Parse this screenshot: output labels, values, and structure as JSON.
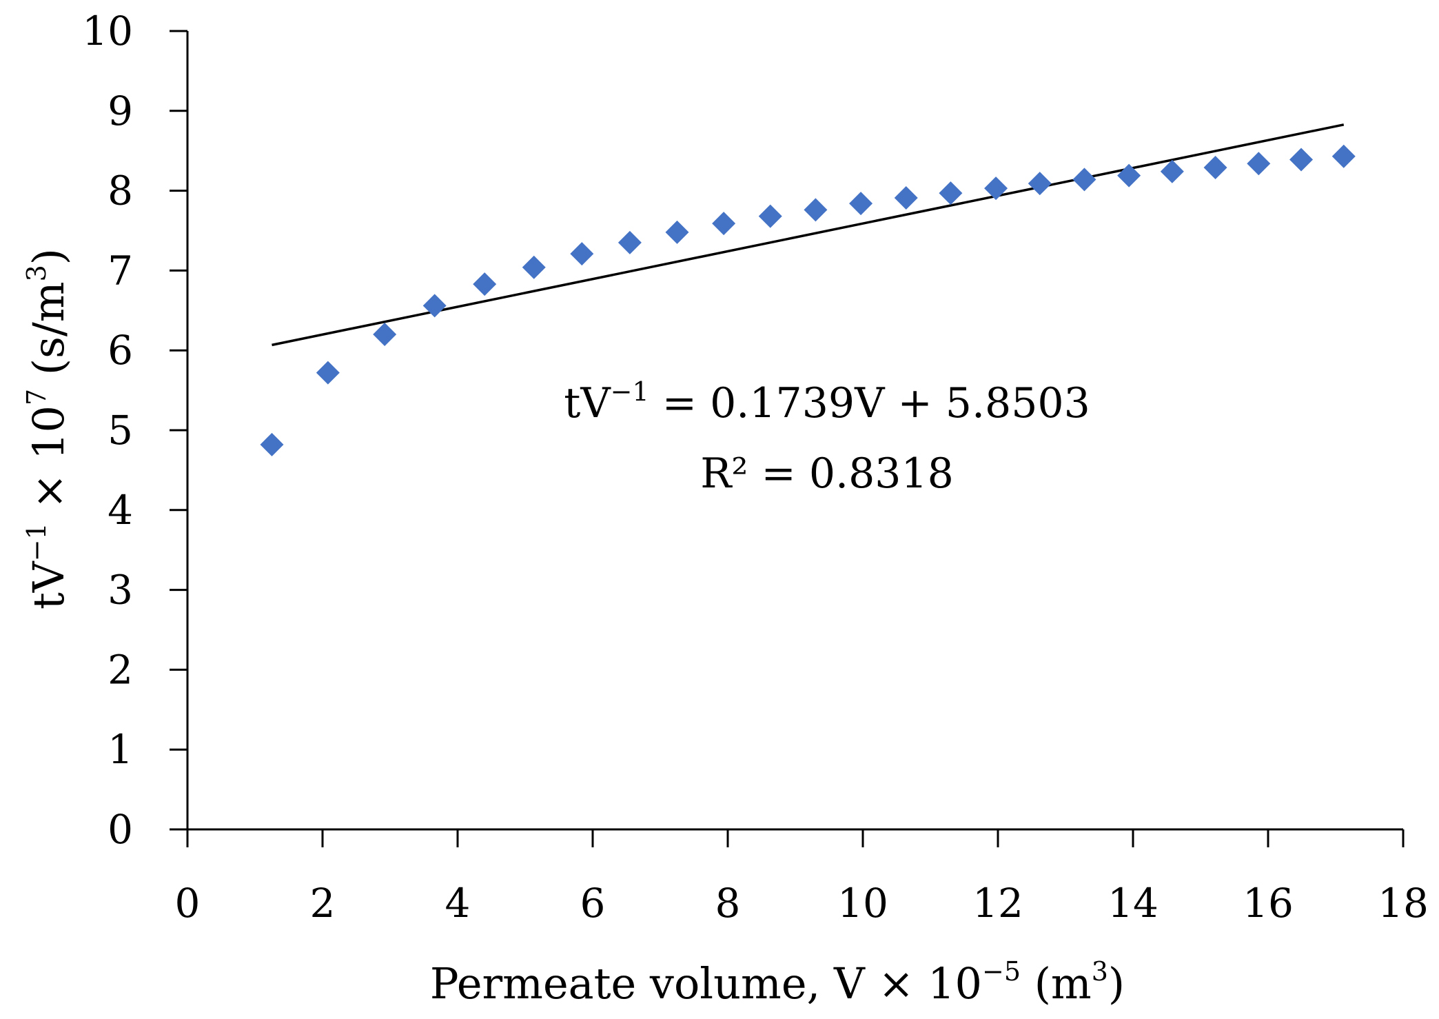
{
  "chart_data": {
    "type": "scatter",
    "xlabel": "Permeate volume, V × 10",
    "xlabel_exponent": "−5",
    "xlabel_unit": " (m",
    "xlabel_unit_exponent": "3",
    "xlabel_close": ")",
    "ylabel": "tV",
    "ylabel_exponent": "−1",
    "ylabel_mid": "  × 10",
    "ylabel_mid_exponent": "7",
    "ylabel_unit": " (s/m",
    "ylabel_unit_exponent": "3",
    "ylabel_close": ")",
    "xlim": [
      0,
      18
    ],
    "ylim": [
      0,
      10
    ],
    "xticks": [
      "0",
      "2",
      "4",
      "6",
      "8",
      "10",
      "12",
      "14",
      "16",
      "18"
    ],
    "yticks": [
      "0",
      "1",
      "2",
      "3",
      "4",
      "5",
      "6",
      "7",
      "8",
      "9",
      "10"
    ],
    "grid": false,
    "marker_color": "#4472C4",
    "line_color": "#000000",
    "series": [
      {
        "name": "tV−1",
        "marker": "diamond",
        "x": [
          1.25,
          2.08,
          2.92,
          3.66,
          4.4,
          5.13,
          5.84,
          6.55,
          7.25,
          7.94,
          8.63,
          9.3,
          9.97,
          10.64,
          11.3,
          11.97,
          12.62,
          13.28,
          13.94,
          14.58,
          15.22,
          15.86,
          16.49,
          17.12
        ],
        "y": [
          4.82,
          5.72,
          6.2,
          6.56,
          6.83,
          7.04,
          7.21,
          7.35,
          7.48,
          7.59,
          7.68,
          7.76,
          7.84,
          7.91,
          7.97,
          8.03,
          8.09,
          8.14,
          8.19,
          8.24,
          8.29,
          8.34,
          8.39,
          8.43
        ]
      }
    ],
    "trendline": {
      "slope": 0.1739,
      "intercept": 5.8503,
      "x_start": 1.25,
      "x_end": 17.12
    },
    "annotations": {
      "equation_prefix": "tV",
      "equation_exponent": "−1",
      "equation_rest": " = 0.1739V + 5.8503",
      "r_squared": "R² = 0.8318"
    }
  }
}
